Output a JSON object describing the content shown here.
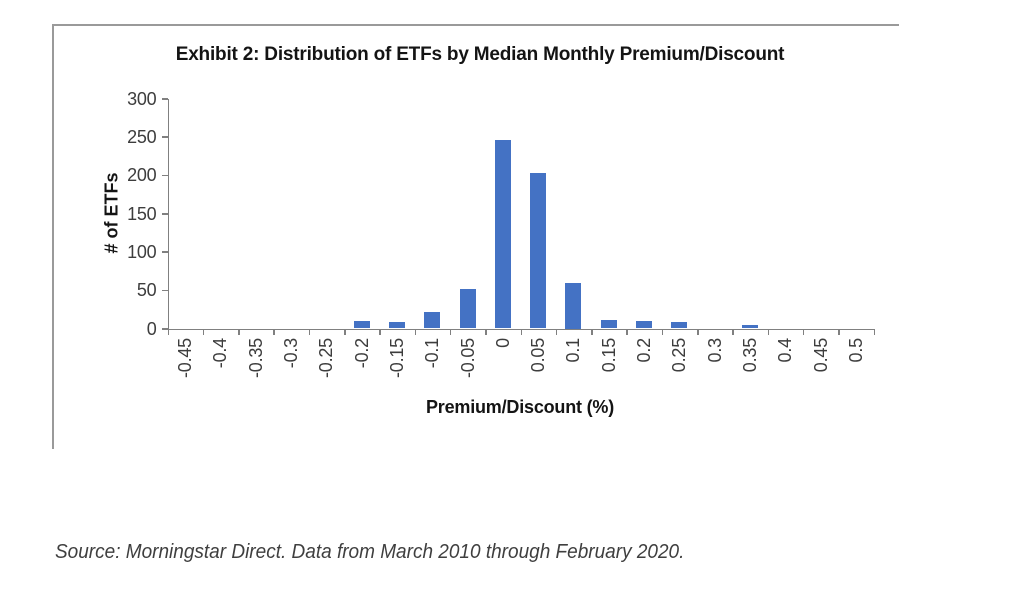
{
  "chart_data": {
    "type": "bar",
    "title": "Exhibit 2: Distribution  of ETFs by Median Monthly  Premium/Discount",
    "xlabel": "Premium/Discount  (%)",
    "ylabel": "# of ETFs",
    "categories": [
      "-0.45",
      "-0.4",
      "-0.35",
      "-0.3",
      "-0.25",
      "-0.2",
      "-0.15",
      "-0.1",
      "-0.05",
      "0",
      "0.05",
      "0.1",
      "0.15",
      "0.2",
      "0.25",
      "0.3",
      "0.35",
      "0.4",
      "0.45",
      "0.5"
    ],
    "values": [
      0,
      0,
      0,
      0,
      0,
      10,
      8,
      21,
      52,
      246,
      203,
      60,
      11,
      10,
      8,
      0,
      4,
      0,
      0,
      0
    ],
    "yticks": [
      0,
      50,
      100,
      150,
      200,
      250,
      300
    ],
    "ylim": [
      0,
      300
    ],
    "xlim_labels": [
      "-0.45",
      "0.5"
    ],
    "grid": false,
    "legend": "none",
    "bar_color": "#4472C4",
    "axis_color": "#808080"
  },
  "source_note": "Source: Morningstar Direct. Data from March 2010 through February 2020."
}
